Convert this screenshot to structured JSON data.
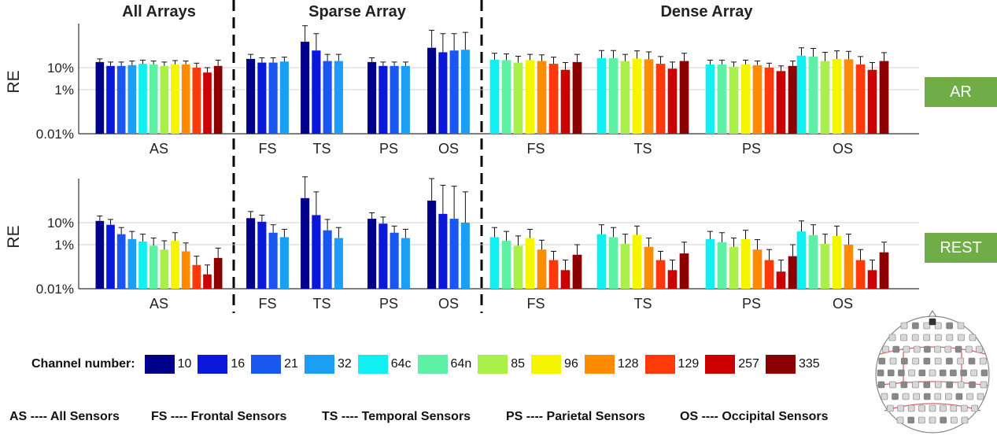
{
  "sections": [
    {
      "label": "All Arrays"
    },
    {
      "label": "Sparse Array"
    },
    {
      "label": "Dense Array"
    }
  ],
  "badges": {
    "ar": "AR",
    "rest": "REST"
  },
  "legend": {
    "title": "Channel number:",
    "items": [
      {
        "label": "10",
        "color": "#00008b"
      },
      {
        "label": "16",
        "color": "#0a18dc"
      },
      {
        "label": "21",
        "color": "#1a56f0"
      },
      {
        "label": "32",
        "color": "#1a9ff5"
      },
      {
        "label": "64c",
        "color": "#10f0f0"
      },
      {
        "label": "64n",
        "color": "#5ef0a4"
      },
      {
        "label": "85",
        "color": "#aaf04a"
      },
      {
        "label": "96",
        "color": "#f5f500"
      },
      {
        "label": "128",
        "color": "#ff8c00"
      },
      {
        "label": "129",
        "color": "#ff3a0a"
      },
      {
        "label": "257",
        "color": "#cc0000"
      },
      {
        "label": "335",
        "color": "#8b0000"
      }
    ]
  },
  "abbreviations": [
    "AS ---- All Sensors",
    "FS ---- Frontal Sensors",
    "TS ---- Temporal Sensors",
    "PS ---- Parietal Sensors",
    "OS ---- Occipital Sensors"
  ],
  "chart_data": [
    {
      "type": "bar",
      "condition": "AR",
      "ylabel": "RE",
      "yscale": "log",
      "yticks": [
        "0.01%",
        "1%",
        "10%"
      ],
      "ylim_percent": [
        0.01,
        1000
      ],
      "grid": "horizontal at tick values",
      "groups": [
        {
          "label": "AS",
          "channels": [
            "10",
            "16",
            "21",
            "32",
            "64c",
            "64n",
            "85",
            "96",
            "128",
            "129",
            "257",
            "335"
          ],
          "values": [
            18,
            12,
            12,
            13,
            15,
            14,
            12,
            14,
            14,
            10,
            6,
            12
          ],
          "err_upper": [
            25,
            18,
            18,
            20,
            22,
            20,
            18,
            21,
            20,
            16,
            10,
            22
          ]
        },
        {
          "label": "FS",
          "channels": [
            "10",
            "16",
            "21",
            "32"
          ],
          "values": [
            25,
            17,
            17,
            19
          ],
          "err_upper": [
            40,
            28,
            28,
            30
          ]
        },
        {
          "label": "TS",
          "channels": [
            "10",
            "16",
            "21",
            "32"
          ],
          "values": [
            150,
            60,
            20,
            20
          ],
          "err_upper": [
            800,
            350,
            40,
            40
          ]
        },
        {
          "label": "PS",
          "channels": [
            "10",
            "16",
            "21",
            "32"
          ],
          "values": [
            18,
            12,
            12,
            12
          ],
          "err_upper": [
            28,
            18,
            18,
            18
          ]
        },
        {
          "label": "OS",
          "channels": [
            "10",
            "16",
            "21",
            "32"
          ],
          "values": [
            80,
            50,
            60,
            65
          ],
          "err_upper": [
            500,
            350,
            350,
            400
          ]
        },
        {
          "label": "FS",
          "channels": [
            "64c",
            "64n",
            "85",
            "96",
            "128",
            "129",
            "257",
            "335"
          ],
          "values": [
            23,
            22,
            17,
            22,
            20,
            15,
            8,
            18
          ],
          "err_upper": [
            45,
            42,
            33,
            40,
            38,
            30,
            17,
            40
          ]
        },
        {
          "label": "TS",
          "channels": [
            "64c",
            "64n",
            "85",
            "96",
            "128",
            "129",
            "257",
            "335"
          ],
          "values": [
            27,
            27,
            20,
            26,
            24,
            15,
            9,
            20
          ],
          "err_upper": [
            60,
            60,
            40,
            58,
            52,
            32,
            18,
            45
          ]
        },
        {
          "label": "PS",
          "channels": [
            "64c",
            "64n",
            "85",
            "96",
            "128",
            "129",
            "257",
            "335"
          ],
          "values": [
            14,
            14,
            11,
            14,
            13,
            10,
            7,
            12
          ],
          "err_upper": [
            22,
            22,
            18,
            22,
            20,
            16,
            12,
            20
          ]
        },
        {
          "label": "OS",
          "channels": [
            "64c",
            "64n",
            "85",
            "96",
            "128",
            "129",
            "257",
            "335"
          ],
          "values": [
            35,
            32,
            20,
            25,
            24,
            14,
            8,
            20
          ],
          "err_upper": [
            80,
            75,
            50,
            58,
            55,
            32,
            17,
            48
          ]
        }
      ]
    },
    {
      "type": "bar",
      "condition": "REST",
      "ylabel": "RE",
      "yscale": "log",
      "yticks": [
        "0.01%",
        "1%",
        "10%"
      ],
      "ylim_percent": [
        0.01,
        1000
      ],
      "grid": "horizontal at tick values",
      "groups": [
        {
          "label": "AS",
          "channels": [
            "10",
            "16",
            "21",
            "32",
            "64c",
            "64n",
            "85",
            "96",
            "128",
            "129",
            "257",
            "335"
          ],
          "values": [
            12,
            8,
            3,
            1.8,
            1.4,
            0.9,
            0.6,
            1.5,
            0.5,
            0.12,
            0.045,
            0.25
          ],
          "err_upper": [
            20,
            14,
            6,
            4,
            3,
            2,
            1.5,
            3.5,
            1.2,
            0.3,
            0.12,
            0.7
          ]
        },
        {
          "label": "FS",
          "channels": [
            "10",
            "16",
            "21",
            "32"
          ],
          "values": [
            16,
            11,
            3.5,
            2.2
          ],
          "err_upper": [
            32,
            22,
            8,
            5
          ]
        },
        {
          "label": "TS",
          "channels": [
            "10",
            "16",
            "21",
            "32"
          ],
          "values": [
            130,
            22,
            4.5,
            2
          ],
          "err_upper": [
            1200,
            250,
            14,
            6
          ]
        },
        {
          "label": "PS",
          "channels": [
            "10",
            "16",
            "21",
            "32"
          ],
          "values": [
            15,
            9,
            3.5,
            2
          ],
          "err_upper": [
            28,
            18,
            7,
            5
          ]
        },
        {
          "label": "OS",
          "channels": [
            "10",
            "16",
            "21",
            "32"
          ],
          "values": [
            100,
            25,
            15,
            10
          ],
          "err_upper": [
            1000,
            500,
            450,
            250
          ]
        },
        {
          "label": "FS",
          "channels": [
            "64c",
            "64n",
            "85",
            "96",
            "128",
            "129",
            "257",
            "335"
          ],
          "values": [
            2.2,
            1.5,
            0.9,
            2,
            0.6,
            0.2,
            0.07,
            0.35
          ],
          "err_upper": [
            6,
            4,
            2.5,
            5,
            1.6,
            0.5,
            0.2,
            1
          ]
        },
        {
          "label": "TS",
          "channels": [
            "64c",
            "64n",
            "85",
            "96",
            "128",
            "129",
            "257",
            "335"
          ],
          "values": [
            3,
            2.2,
            1.1,
            2.8,
            0.8,
            0.2,
            0.07,
            0.4
          ],
          "err_upper": [
            8,
            6,
            3,
            7,
            2,
            0.5,
            0.2,
            1.3
          ]
        },
        {
          "label": "PS",
          "channels": [
            "64c",
            "64n",
            "85",
            "96",
            "128",
            "129",
            "257",
            "335"
          ],
          "values": [
            1.8,
            1.3,
            0.8,
            1.8,
            0.6,
            0.2,
            0.06,
            0.3
          ],
          "err_upper": [
            4,
            3.5,
            2,
            4.5,
            1.7,
            0.6,
            0.2,
            1
          ]
        },
        {
          "label": "OS",
          "channels": [
            "64c",
            "64n",
            "85",
            "96",
            "128",
            "129",
            "257",
            "335"
          ],
          "values": [
            4,
            2.7,
            1.1,
            2.5,
            1,
            0.2,
            0.07,
            0.45
          ],
          "err_upper": [
            12,
            8,
            3,
            7,
            3,
            0.6,
            0.2,
            1.3
          ]
        }
      ]
    }
  ]
}
